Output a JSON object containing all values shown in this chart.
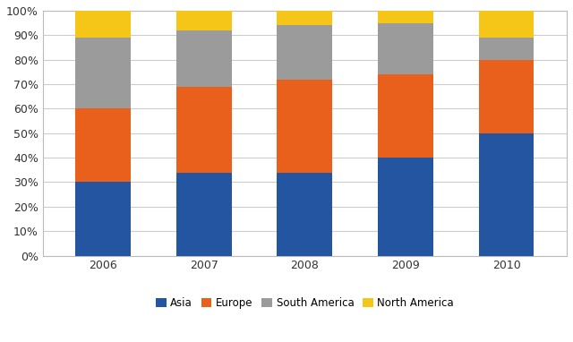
{
  "years": [
    "2006",
    "2007",
    "2008",
    "2009",
    "2010"
  ],
  "Asia": [
    30,
    34,
    34,
    40,
    50
  ],
  "Europe": [
    30,
    35,
    38,
    34,
    30
  ],
  "South America": [
    29,
    23,
    22,
    21,
    9
  ],
  "North America": [
    11,
    8,
    6,
    5,
    11
  ],
  "colors": {
    "Asia": "#2355A0",
    "Europe": "#E8601C",
    "South America": "#9B9B9B",
    "North America": "#F5C518"
  },
  "ylim": [
    0,
    100
  ],
  "yticks": [
    0,
    10,
    20,
    30,
    40,
    50,
    60,
    70,
    80,
    90,
    100
  ],
  "ytick_labels": [
    "0%",
    "10%",
    "20%",
    "30%",
    "40%",
    "50%",
    "60%",
    "70%",
    "80%",
    "90%",
    "100%"
  ],
  "legend_order": [
    "Asia",
    "Europe",
    "South America",
    "North America"
  ],
  "bar_width": 0.55,
  "background_color": "#FFFFFF",
  "grid_color": "#CCCCCC",
  "border_color": "#BBBBBB"
}
